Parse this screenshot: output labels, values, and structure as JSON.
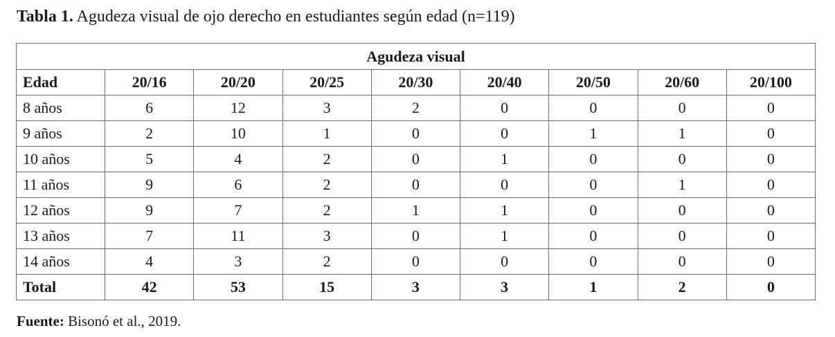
{
  "caption": {
    "label": "Tabla 1.",
    "text": " Agudeza visual de ojo derecho en estudiantes según edad (n=119)"
  },
  "table": {
    "group_header": "Agudeza visual",
    "columns": [
      "Edad",
      "20/16",
      "20/20",
      "20/25",
      "20/30",
      "20/40",
      "20/50",
      "20/60",
      "20/100"
    ],
    "rows": [
      [
        "8 años",
        "6",
        "12",
        "3",
        "2",
        "0",
        "0",
        "0",
        "0"
      ],
      [
        "9 años",
        "2",
        "10",
        "1",
        "0",
        "0",
        "1",
        "1",
        "0"
      ],
      [
        "10 años",
        "5",
        "4",
        "2",
        "0",
        "1",
        "0",
        "0",
        "0"
      ],
      [
        "11 años",
        "9",
        "6",
        "2",
        "0",
        "0",
        "0",
        "1",
        "0"
      ],
      [
        "12 años",
        "9",
        "7",
        "2",
        "1",
        "1",
        "0",
        "0",
        "0"
      ],
      [
        "13 años",
        "7",
        "11",
        "3",
        "0",
        "1",
        "0",
        "0",
        "0"
      ],
      [
        "14 años",
        "4",
        "3",
        "2",
        "0",
        "0",
        "0",
        "0",
        "0"
      ]
    ],
    "total": [
      "Total",
      "42",
      "53",
      "15",
      "3",
      "3",
      "1",
      "2",
      "0"
    ]
  },
  "source": {
    "label": "Fuente:",
    "text": " Bisonó et al., 2019."
  }
}
